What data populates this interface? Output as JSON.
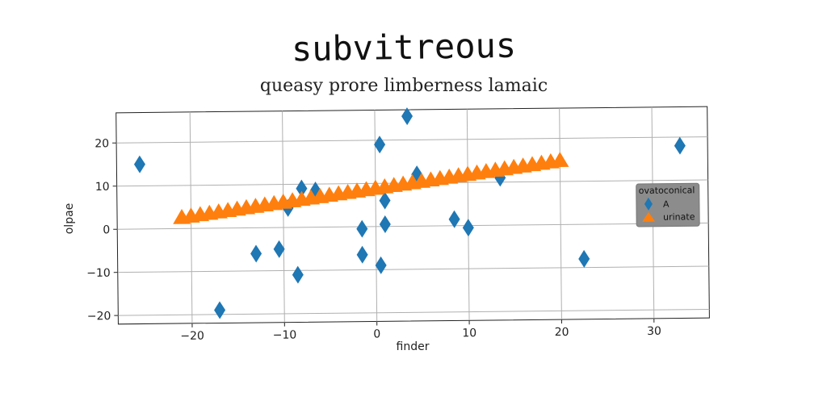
{
  "title": "subvitreous",
  "chart_data": {
    "type": "scatter",
    "title": "queasy prore limberness lamaic",
    "xlabel": "finder",
    "ylabel": "olpae",
    "xlim": [
      -28,
      36
    ],
    "ylim": [
      -22,
      27
    ],
    "xticks": [
      -20,
      -10,
      0,
      10,
      20,
      30
    ],
    "xtick_labels": [
      "−20",
      "−10",
      "0",
      "10",
      "20",
      "30"
    ],
    "yticks": [
      -20,
      -10,
      0,
      10,
      20
    ],
    "ytick_labels": [
      "−20",
      "−10",
      "0",
      "10",
      "20"
    ],
    "grid": true,
    "legend": {
      "title": "ovatoconical",
      "position": "right"
    },
    "series": [
      {
        "name": "A",
        "marker": "diamond",
        "color": "#1f77b4",
        "x": [
          -25.5,
          -17,
          -13,
          -10.5,
          -9.5,
          -8.5,
          -8,
          -6.5,
          -1.5,
          -1.5,
          0.5,
          0.5,
          1,
          1,
          3.5,
          4.5,
          8.5,
          10,
          13.5,
          22.5,
          33
        ],
        "y": [
          15,
          -19,
          -6,
          -5,
          4.5,
          -11,
          9,
          8.5,
          -0.5,
          -6.5,
          19,
          -9,
          6,
          0.5,
          25.5,
          12,
          1.5,
          -0.5,
          11,
          -8,
          18
        ]
      },
      {
        "name": "urinate",
        "marker": "triangle",
        "color": "#ff7f0e",
        "x": [
          -21,
          -20,
          -19,
          -18,
          -17,
          -16,
          -15,
          -14,
          -13,
          -12,
          -11,
          -10,
          -9,
          -8,
          -7,
          -6,
          -5,
          -4,
          -3,
          -2,
          -1,
          0,
          1,
          2,
          3,
          4,
          5,
          6,
          7,
          8,
          9,
          10,
          11,
          12,
          13,
          14,
          15,
          16,
          17,
          18,
          19,
          20
        ],
        "y": [
          2.5,
          2.8,
          3.1,
          3.4,
          3.7,
          4.0,
          4.3,
          4.6,
          4.9,
          5.2,
          5.5,
          5.8,
          6.1,
          6.4,
          6.7,
          7.0,
          7.3,
          7.6,
          7.9,
          8.2,
          8.5,
          8.8,
          9.1,
          9.4,
          9.7,
          10.0,
          10.3,
          10.6,
          10.9,
          11.2,
          11.5,
          11.8,
          12.1,
          12.4,
          12.7,
          13.0,
          13.3,
          13.6,
          13.9,
          14.2,
          14.5,
          14.8
        ]
      }
    ]
  }
}
